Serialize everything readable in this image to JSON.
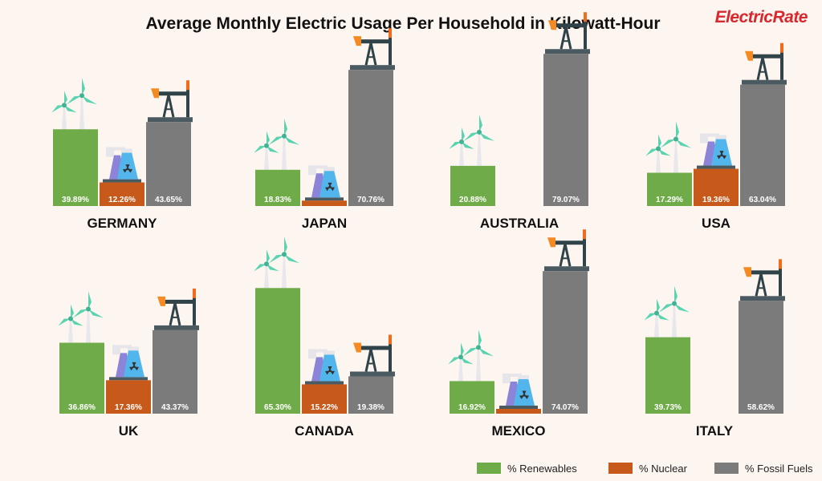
{
  "header": {
    "title": "Average Monthly Electric Usage Per Household in Kilowatt-Hour",
    "brand_primary": "Electric",
    "brand_secondary": "Rate"
  },
  "colors": {
    "renewables": "#6fab48",
    "nuclear": "#c7591a",
    "fossil": "#7b7b7b",
    "brand": "#d8282e"
  },
  "chart_data": {
    "type": "bar",
    "title": "Average Monthly Electric Usage Per Household in Kilowatt-Hour",
    "unit": "%",
    "ylim": [
      0,
      100
    ],
    "series_names": [
      "% Renewables",
      "% Nuclear",
      "% Fossil Fuels"
    ],
    "countries": [
      {
        "name": "GERMANY",
        "renewables": 39.89,
        "nuclear": 12.26,
        "fossil": 43.65,
        "renewables_label": "39.89%",
        "nuclear_label": "12.26%",
        "fossil_label": "43.65%"
      },
      {
        "name": "JAPAN",
        "renewables": 18.83,
        "nuclear": 2.8,
        "fossil": 70.76,
        "renewables_label": "18.83%",
        "nuclear_label": "",
        "fossil_label": "70.76%"
      },
      {
        "name": "AUSTRALIA",
        "renewables": 20.88,
        "nuclear": 0,
        "fossil": 79.07,
        "renewables_label": "20.88%",
        "nuclear_label": "",
        "fossil_label": "79.07%"
      },
      {
        "name": "USA",
        "renewables": 17.29,
        "nuclear": 19.36,
        "fossil": 63.04,
        "renewables_label": "17.29%",
        "nuclear_label": "19.36%",
        "fossil_label": "63.04%"
      },
      {
        "name": "UK",
        "renewables": 36.86,
        "nuclear": 17.36,
        "fossil": 43.37,
        "renewables_label": "36.86%",
        "nuclear_label": "17.36%",
        "fossil_label": "43.37%"
      },
      {
        "name": "CANADA",
        "renewables": 65.3,
        "nuclear": 15.22,
        "fossil": 19.38,
        "renewables_label": "65.30%",
        "nuclear_label": "15.22%",
        "fossil_label": "19.38%"
      },
      {
        "name": "MEXICO",
        "renewables": 16.92,
        "nuclear": 2.5,
        "fossil": 74.07,
        "renewables_label": "16.92%",
        "nuclear_label": "",
        "fossil_label": "74.07%"
      },
      {
        "name": "ITALY",
        "renewables": 39.73,
        "nuclear": 0,
        "fossil": 58.62,
        "renewables_label": "39.73%",
        "nuclear_label": "",
        "fossil_label": "58.62%"
      }
    ],
    "legend_position": "bottom-right"
  },
  "legend": [
    {
      "label": "% Renewables",
      "color_key": "renewables"
    },
    {
      "label": "% Nuclear",
      "color_key": "nuclear"
    },
    {
      "label": "% Fossil Fuels",
      "color_key": "fossil"
    }
  ],
  "icons": [
    "wind-turbine-icon",
    "nuclear-plant-icon",
    "oil-pumpjack-icon"
  ]
}
